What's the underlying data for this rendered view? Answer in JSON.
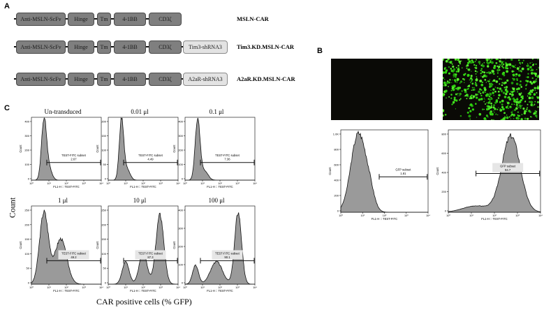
{
  "panels": {
    "a": "A",
    "b": "B",
    "c": "C"
  },
  "constructs": [
    {
      "name": "MSLN-CAR",
      "segments": [
        "Anti-MSLN-ScFv",
        "Hinge",
        "Tm",
        "4-1BB",
        "CD3ζ"
      ],
      "extra": ""
    },
    {
      "name": "Tim3.KD.MSLN-CAR",
      "segments": [
        "Anti-MSLN-ScFv",
        "Hinge",
        "Tm",
        "4-1BB",
        "CD3ζ"
      ],
      "extra": "Tim3-shRNA3"
    },
    {
      "name": "A2aR.KD.MSLN-CAR",
      "segments": [
        "Anti-MSLN-ScFv",
        "Hinge",
        "Tm",
        "4-1BB",
        "CD3ζ"
      ],
      "extra": "A2aR-shRNA3"
    }
  ],
  "panel_c": {
    "y_label": "Count",
    "x_label": "CAR positive cells (% GFP)",
    "axis_title": "FL1-H :: TEST-FITC",
    "y_axis_title": "Count",
    "gate_label": "TEST-FITC subset",
    "plots": [
      {
        "title": "Un-transduced",
        "gate_value": "2.67"
      },
      {
        "title": "0.01 μl",
        "gate_value": "4.49"
      },
      {
        "title": "0.1 μl",
        "gate_value": "7.36"
      },
      {
        "title": "1 μl",
        "gate_value": "49.2"
      },
      {
        "title": "10 μl",
        "gate_value": "87.3"
      },
      {
        "title": "100 μl",
        "gate_value": "90.1"
      }
    ]
  },
  "panel_b": {
    "axis_title": "FL1-H :: TEST-FITC",
    "y_axis_title": "Count",
    "gate_label": "GFP subset",
    "plots": [
      {
        "gate_value": "1.81",
        "y_ticks": [
          "1.0K",
          "800",
          "600",
          "400",
          "200",
          "0"
        ]
      },
      {
        "gate_value": "94.7",
        "y_ticks": [
          "800",
          "600",
          "400",
          "200",
          "0"
        ]
      }
    ]
  },
  "colors": {
    "histogram_fill": "#9a9a9a",
    "box_dark": "#7f7f7f",
    "box_light": "#e3e3e3",
    "gfp_green": "#33d411"
  }
}
